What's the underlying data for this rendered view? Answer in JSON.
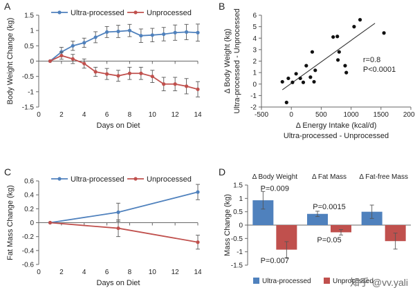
{
  "panels": {
    "A": {
      "letter": "A"
    },
    "B": {
      "letter": "B"
    },
    "C": {
      "letter": "C"
    },
    "D": {
      "letter": "D"
    }
  },
  "colors": {
    "ultra": "#4f81bd",
    "unprocessed": "#c0504d",
    "errorbar": "#555555",
    "axis": "#666666",
    "text": "#222222"
  },
  "watermark": "知乎 @vv.yali",
  "chart_data": [
    {
      "id": "A",
      "type": "line",
      "xlabel": "Days on Diet",
      "ylabel": "Body Weight Change (kg)",
      "xlim": [
        0,
        14
      ],
      "ylim": [
        -1.5,
        1.5
      ],
      "xticks": [
        0,
        2,
        4,
        6,
        8,
        10,
        12,
        14
      ],
      "yticks": [
        -1.5,
        -1,
        -0.5,
        0,
        0.5,
        1,
        1.5
      ],
      "ytick_labels": [
        "-1.5",
        "-1",
        "-0.5",
        "0",
        "0.5",
        "1",
        "1.5"
      ],
      "legend": "top",
      "series": [
        {
          "name": "Ultra-processed",
          "color": "#4f81bd",
          "x": [
            1,
            2,
            3,
            4,
            5,
            6,
            7,
            8,
            9,
            10,
            11,
            12,
            13,
            14
          ],
          "y": [
            0,
            0.3,
            0.5,
            0.6,
            0.78,
            0.95,
            0.97,
            1.0,
            0.83,
            0.85,
            0.88,
            0.93,
            0.95,
            0.93
          ],
          "err": [
            0,
            0.15,
            0.15,
            0.15,
            0.18,
            0.18,
            0.2,
            0.2,
            0.22,
            0.22,
            0.22,
            0.25,
            0.25,
            0.28
          ]
        },
        {
          "name": "Unprocessed",
          "color": "#c0504d",
          "x": [
            1,
            2,
            3,
            4,
            5,
            6,
            7,
            8,
            9,
            10,
            11,
            12,
            13,
            14
          ],
          "y": [
            0,
            0.18,
            0.07,
            -0.08,
            -0.35,
            -0.42,
            -0.48,
            -0.4,
            -0.4,
            -0.5,
            -0.75,
            -0.75,
            -0.82,
            -0.92
          ],
          "err": [
            0,
            0.12,
            0.15,
            0.15,
            0.15,
            0.18,
            0.18,
            0.2,
            0.2,
            0.2,
            0.22,
            0.22,
            0.25,
            0.25
          ]
        }
      ]
    },
    {
      "id": "B",
      "type": "scatter",
      "xlabel": "Δ Energy Intake (kcal/d)",
      "xlabel2": "Ultra-processed - Unprocessed",
      "ylabel": "Δ Body Weight (kg)",
      "ylabel2": "Ultra-processed - Unprocessed",
      "xlim": [
        -500,
        2000
      ],
      "ylim": [
        -2,
        6
      ],
      "xticks": [
        -500,
        0,
        500,
        1000,
        1500,
        2000
      ],
      "yticks": [
        -2,
        -1,
        0,
        1,
        2,
        3,
        4,
        5,
        6
      ],
      "grid": false,
      "annotations": [
        "r=0.8",
        "P<0.0001"
      ],
      "points": [
        {
          "x": -150,
          "y": 0.2
        },
        {
          "x": -80,
          "y": -1.6
        },
        {
          "x": -50,
          "y": 0.5
        },
        {
          "x": 20,
          "y": 0.15
        },
        {
          "x": 80,
          "y": 0.9
        },
        {
          "x": 150,
          "y": 0.5
        },
        {
          "x": 200,
          "y": 0.15
        },
        {
          "x": 250,
          "y": 1.6
        },
        {
          "x": 320,
          "y": 0.6
        },
        {
          "x": 350,
          "y": 2.8
        },
        {
          "x": 380,
          "y": 0.2
        },
        {
          "x": 400,
          "y": 1.2
        },
        {
          "x": 700,
          "y": 4.1
        },
        {
          "x": 770,
          "y": 4.15
        },
        {
          "x": 780,
          "y": 2.1
        },
        {
          "x": 800,
          "y": 2.8
        },
        {
          "x": 900,
          "y": 1.6
        },
        {
          "x": 920,
          "y": 1.0
        },
        {
          "x": 1050,
          "y": 5.0
        },
        {
          "x": 1150,
          "y": 5.6
        },
        {
          "x": 1550,
          "y": 4.45
        }
      ],
      "trendline": {
        "x": [
          -150,
          1400
        ],
        "y": [
          -0.5,
          5.3
        ]
      }
    },
    {
      "id": "C",
      "type": "line",
      "xlabel": "Days on Diet",
      "ylabel": "Fat Mass Change (kg)",
      "xlim": [
        0,
        14
      ],
      "ylim": [
        -0.6,
        0.6
      ],
      "xticks": [
        0,
        2,
        4,
        6,
        8,
        10,
        12,
        14
      ],
      "yticks": [
        -0.6,
        -0.4,
        -0.2,
        0,
        0.2,
        0.4,
        0.6
      ],
      "ytick_labels": [
        "-0.6",
        "-0.4",
        "-0.2",
        "0",
        "0.2",
        "0.4",
        "0.6"
      ],
      "legend": "top",
      "series": [
        {
          "name": "Ultra-processed",
          "color": "#4f81bd",
          "x": [
            1,
            7,
            14
          ],
          "y": [
            0,
            0.15,
            0.44
          ],
          "err": [
            0,
            0.13,
            0.11
          ]
        },
        {
          "name": "Unprocessed",
          "color": "#c0504d",
          "x": [
            1,
            7,
            14
          ],
          "y": [
            0,
            -0.08,
            -0.28
          ],
          "err": [
            0,
            0.12,
            0.1
          ]
        }
      ]
    },
    {
      "id": "D",
      "type": "bar",
      "ylabel": "Mass Change (kg)",
      "ylim": [
        -1.5,
        1.5
      ],
      "yticks": [
        -1.5,
        -1,
        -0.5,
        0,
        0.5,
        1,
        1.5
      ],
      "ytick_labels": [
        "-1.5",
        "-1",
        "-0.5",
        "0",
        "0.5",
        "1",
        "1.5"
      ],
      "categories": [
        "Δ Body Weight",
        "Δ Fat Mass",
        "Δ Fat-free Mass"
      ],
      "legend": "bottom",
      "series": [
        {
          "name": "Ultra-processed",
          "color": "#4f81bd",
          "values": [
            0.93,
            0.42,
            0.5
          ],
          "err": [
            0.33,
            0.1,
            0.25
          ]
        },
        {
          "name": "Unprocessed",
          "color": "#c0504d",
          "values": [
            -0.92,
            -0.27,
            -0.6
          ],
          "err": [
            0.3,
            0.1,
            0.3
          ]
        }
      ],
      "annotations": [
        {
          "text": "P=0.009",
          "cat": 0,
          "y": 1.28
        },
        {
          "text": "P=0.007",
          "cat": 0,
          "y": -1.42
        },
        {
          "text": "P=0.0015",
          "cat": 1,
          "y": 0.6
        },
        {
          "text": "P=0.05",
          "cat": 1,
          "y": -0.65
        }
      ]
    }
  ]
}
